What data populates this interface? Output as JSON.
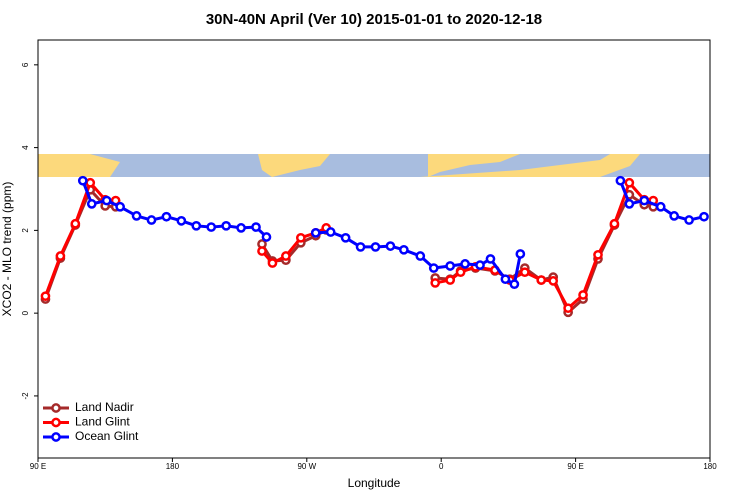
{
  "chart_data": {
    "type": "line",
    "title": "30N-40N April (Ver 10)   2015-01-01 to 2020-12-18",
    "x_label": "Longitude",
    "y_label": "XCO2 - MLO trend (ppm)",
    "xlim": [
      90,
      540
    ],
    "ylim": [
      -3.5,
      6.6
    ],
    "xticks": [
      {
        "value": 90,
        "label": "90 E"
      },
      {
        "value": 180,
        "label": "180"
      },
      {
        "value": 270,
        "label": "90 W"
      },
      {
        "value": 360,
        "label": "0"
      },
      {
        "value": 450,
        "label": "90 E"
      },
      {
        "value": 540,
        "label": "180"
      }
    ],
    "yticks": [
      -2,
      0,
      2,
      4,
      6
    ],
    "grid": false,
    "legend": "bottom-left",
    "series": [
      {
        "name": "Land Nadir",
        "color": "#a52a2a",
        "x": [
          95,
          105,
          115,
          125,
          135,
          142,
          null,
          240,
          247,
          256,
          266,
          276,
          283,
          null,
          356,
          366,
          373,
          383,
          396,
          406,
          416,
          427,
          435,
          445,
          455,
          465,
          476,
          486,
          496,
          502
        ],
        "values": [
          0.34,
          1.33,
          2.13,
          2.98,
          2.59,
          2.57,
          null,
          1.67,
          1.26,
          1.28,
          1.7,
          1.87,
          2.01,
          null,
          0.85,
          0.82,
          1.02,
          1.09,
          1.02,
          0.82,
          1.09,
          0.8,
          0.87,
          0.02,
          0.34,
          1.31,
          2.13,
          2.86,
          2.62,
          2.57
        ]
      },
      {
        "name": "Land Glint",
        "color": "#ff0000",
        "x": [
          95,
          105,
          115,
          125,
          135,
          142,
          null,
          240,
          247,
          256,
          266,
          276,
          283,
          null,
          356,
          366,
          373,
          383,
          396,
          406,
          416,
          427,
          435,
          445,
          455,
          465,
          476,
          486,
          496,
          502
        ],
        "values": [
          0.41,
          1.38,
          2.16,
          3.15,
          2.74,
          2.72,
          null,
          1.5,
          1.21,
          1.38,
          1.82,
          1.94,
          2.06,
          null,
          0.73,
          0.8,
          0.99,
          1.12,
          1.04,
          0.8,
          0.99,
          0.8,
          0.78,
          0.12,
          0.44,
          1.41,
          2.16,
          3.15,
          2.74,
          2.72
        ]
      },
      {
        "name": "Ocean Glint",
        "color": "#0000ff",
        "x": [
          120,
          126,
          136,
          145,
          156,
          166,
          176,
          186,
          196,
          206,
          216,
          226,
          236,
          243,
          null,
          276,
          286,
          296,
          306,
          316,
          326,
          335,
          346,
          355,
          366,
          376,
          386,
          393,
          403,
          409,
          413,
          null,
          480,
          486,
          496,
          507,
          516,
          526,
          536
        ],
        "values": [
          3.2,
          2.64,
          2.72,
          2.57,
          2.35,
          2.25,
          2.33,
          2.23,
          2.11,
          2.08,
          2.11,
          2.06,
          2.08,
          1.84,
          null,
          1.94,
          1.96,
          1.82,
          1.6,
          1.6,
          1.62,
          1.53,
          1.38,
          1.09,
          1.14,
          1.19,
          1.16,
          1.31,
          0.82,
          0.7,
          1.43,
          null,
          3.2,
          2.64,
          2.72,
          2.57,
          2.35,
          2.25,
          2.33
        ]
      }
    ]
  }
}
